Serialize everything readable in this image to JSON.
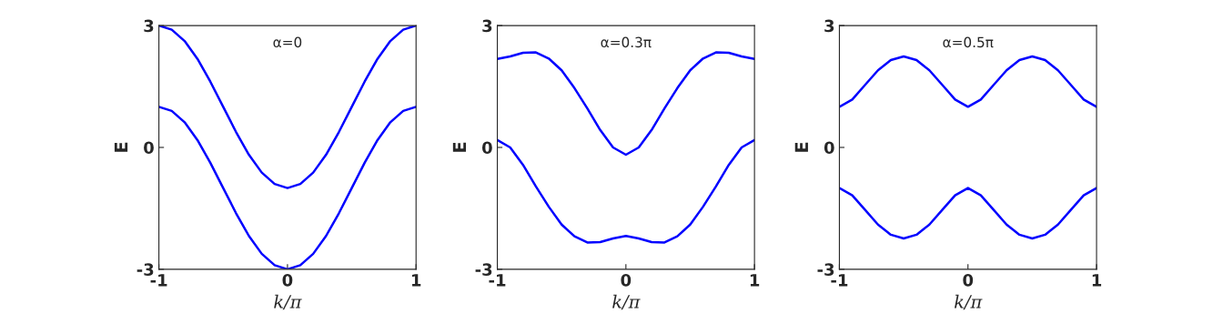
{
  "chart_data": [
    {
      "type": "line",
      "title": "α=0",
      "xlabel": "k/π",
      "ylabel": "E",
      "x": [
        -1,
        -0.9,
        -0.8,
        -0.7,
        -0.6,
        -0.5,
        -0.4,
        -0.3,
        -0.2,
        -0.1,
        0,
        0.1,
        0.2,
        0.3,
        0.4,
        0.5,
        0.6,
        0.7,
        0.8,
        0.9,
        1
      ],
      "xlim": [
        -1,
        1
      ],
      "xticks": [
        -1,
        0,
        1
      ],
      "ylim": [
        -3,
        3
      ],
      "yticks": [
        -3,
        0,
        3
      ],
      "grid": false,
      "legend": false,
      "series": [
        {
          "color": "#0000ff",
          "values": [
            3,
            2.9,
            2.62,
            2.18,
            1.62,
            1,
            0.38,
            -0.18,
            -0.62,
            -0.9,
            -1,
            -0.9,
            -0.62,
            -0.18,
            0.38,
            1,
            1.62,
            2.18,
            2.62,
            2.9,
            3
          ]
        },
        {
          "color": "#0000ff",
          "values": [
            1,
            0.9,
            0.62,
            0.18,
            -0.38,
            -1,
            -1.62,
            -2.18,
            -2.62,
            -2.9,
            -3,
            -2.9,
            -2.62,
            -2.18,
            -1.62,
            -1,
            -0.38,
            0.18,
            0.62,
            0.9,
            1
          ]
        }
      ]
    },
    {
      "type": "line",
      "title": "α=0.3π",
      "xlabel": "k/π",
      "ylabel": "E",
      "x": [
        -1,
        -0.9,
        -0.8,
        -0.7,
        -0.6,
        -0.5,
        -0.4,
        -0.3,
        -0.2,
        -0.1,
        0,
        0.1,
        0.2,
        0.3,
        0.4,
        0.5,
        0.6,
        0.7,
        0.8,
        0.9,
        1
      ],
      "xlim": [
        -1,
        1
      ],
      "xticks": [
        -1,
        0,
        1
      ],
      "ylim": [
        -3,
        3
      ],
      "yticks": [
        -3,
        0,
        3
      ],
      "grid": false,
      "legend": false,
      "series": [
        {
          "color": "#0000ff",
          "values": [
            2.18,
            2.24,
            2.33,
            2.34,
            2.19,
            1.9,
            1.46,
            0.96,
            0.43,
            0,
            -0.18,
            0,
            0.43,
            0.96,
            1.46,
            1.9,
            2.19,
            2.34,
            2.33,
            2.24,
            2.18
          ]
        },
        {
          "color": "#0000ff",
          "values": [
            0.18,
            0,
            -0.43,
            -0.96,
            -1.46,
            -1.9,
            -2.19,
            -2.34,
            -2.33,
            -2.24,
            -2.18,
            -2.24,
            -2.33,
            -2.34,
            -2.19,
            -1.9,
            -1.46,
            -0.96,
            -0.43,
            0,
            0.18
          ]
        }
      ]
    },
    {
      "type": "line",
      "title": "α=0.5π",
      "xlabel": "k/π",
      "ylabel": "E",
      "x": [
        -1,
        -0.9,
        -0.8,
        -0.7,
        -0.6,
        -0.5,
        -0.4,
        -0.3,
        -0.2,
        -0.1,
        0,
        0.1,
        0.2,
        0.3,
        0.4,
        0.5,
        0.6,
        0.7,
        0.8,
        0.9,
        1
      ],
      "xlim": [
        -1,
        1
      ],
      "xticks": [
        -1,
        0,
        1
      ],
      "ylim": [
        -3,
        3
      ],
      "yticks": [
        -3,
        0,
        3
      ],
      "grid": false,
      "legend": false,
      "series": [
        {
          "color": "#0000ff",
          "values": [
            1,
            1.18,
            1.54,
            1.9,
            2.15,
            2.24,
            2.15,
            1.9,
            1.54,
            1.18,
            1,
            1.18,
            1.54,
            1.9,
            2.15,
            2.24,
            2.15,
            1.9,
            1.54,
            1.18,
            1
          ]
        },
        {
          "color": "#0000ff",
          "values": [
            -1,
            -1.18,
            -1.54,
            -1.9,
            -2.15,
            -2.24,
            -2.15,
            -1.9,
            -1.54,
            -1.18,
            -1,
            -1.18,
            -1.54,
            -1.9,
            -2.15,
            -2.24,
            -2.15,
            -1.9,
            -1.54,
            -1.18,
            -1
          ]
        }
      ]
    }
  ]
}
